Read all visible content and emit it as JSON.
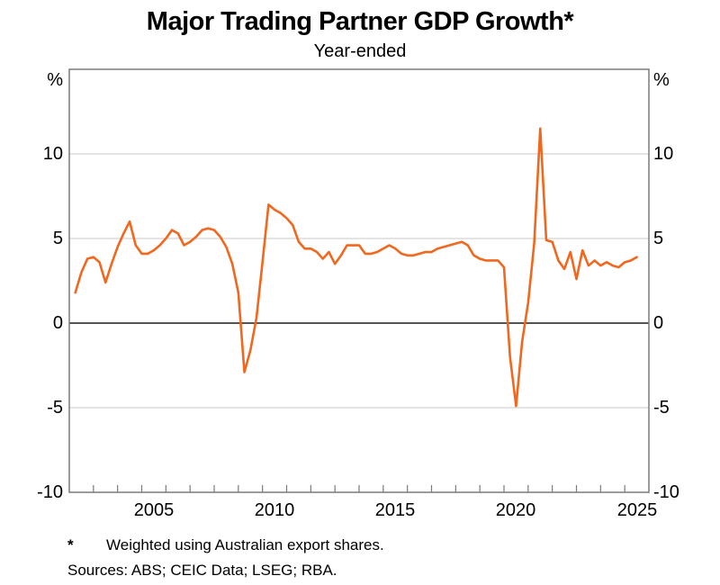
{
  "title": "Major Trading Partner GDP Growth*",
  "subtitle": "Year-ended",
  "y_axis": {
    "unit_left": "%",
    "unit_right": "%",
    "tick_labels": [
      "10",
      "5",
      "0",
      "-5",
      "-10"
    ]
  },
  "x_axis": {
    "labels": [
      "2005",
      "2010",
      "2015",
      "2020",
      "2025"
    ]
  },
  "footnote": {
    "marker": "*",
    "text": "Weighted using Australian export shares."
  },
  "sources": "Sources: ABS; CEIC Data; LSEG; RBA.",
  "chart_data": {
    "type": "line",
    "title": "Major Trading Partner GDP Growth*",
    "subtitle": "Year-ended",
    "ylabel": "%",
    "xlim": [
      2002,
      2026
    ],
    "ylim": [
      -10,
      15
    ],
    "gridlines": [
      10,
      5,
      -5
    ],
    "zero_line": 0,
    "x_tick_interval_years": 1,
    "x_label_years": [
      2005,
      2010,
      2015,
      2020,
      2025
    ],
    "frequency": "quarterly",
    "style": {
      "line_color": "#F2671E",
      "grid_color": "#C9C9C9",
      "zero_color": "#3C3C3C",
      "frame_color": "#7A7A7A"
    },
    "series": [
      {
        "name": "Major trading partner GDP growth (year-ended, %)",
        "color": "#F2671E",
        "x_start": 2002.25,
        "x_step": 0.25,
        "values": [
          1.8,
          3.0,
          3.8,
          3.9,
          3.6,
          2.4,
          3.5,
          4.5,
          5.3,
          6.0,
          4.6,
          4.1,
          4.1,
          4.3,
          4.6,
          5.0,
          5.5,
          5.3,
          4.6,
          4.8,
          5.1,
          5.5,
          5.6,
          5.5,
          5.1,
          4.5,
          3.5,
          1.8,
          -2.9,
          -1.6,
          0.3,
          3.6,
          7.0,
          6.7,
          6.5,
          6.2,
          5.8,
          4.8,
          4.4,
          4.4,
          4.2,
          3.8,
          4.2,
          3.5,
          4.0,
          4.6,
          4.6,
          4.6,
          4.1,
          4.1,
          4.2,
          4.4,
          4.6,
          4.4,
          4.1,
          4.0,
          4.0,
          4.1,
          4.2,
          4.2,
          4.4,
          4.5,
          4.6,
          4.7,
          4.8,
          4.6,
          4.0,
          3.8,
          3.7,
          3.7,
          3.7,
          3.3,
          -2.0,
          -4.9,
          -1.1,
          1.2,
          4.7,
          11.5,
          4.9,
          4.8,
          3.7,
          3.2,
          4.2,
          2.6,
          4.3,
          3.4,
          3.7,
          3.4,
          3.6,
          3.4,
          3.3,
          3.6,
          3.7,
          3.9
        ]
      }
    ]
  }
}
